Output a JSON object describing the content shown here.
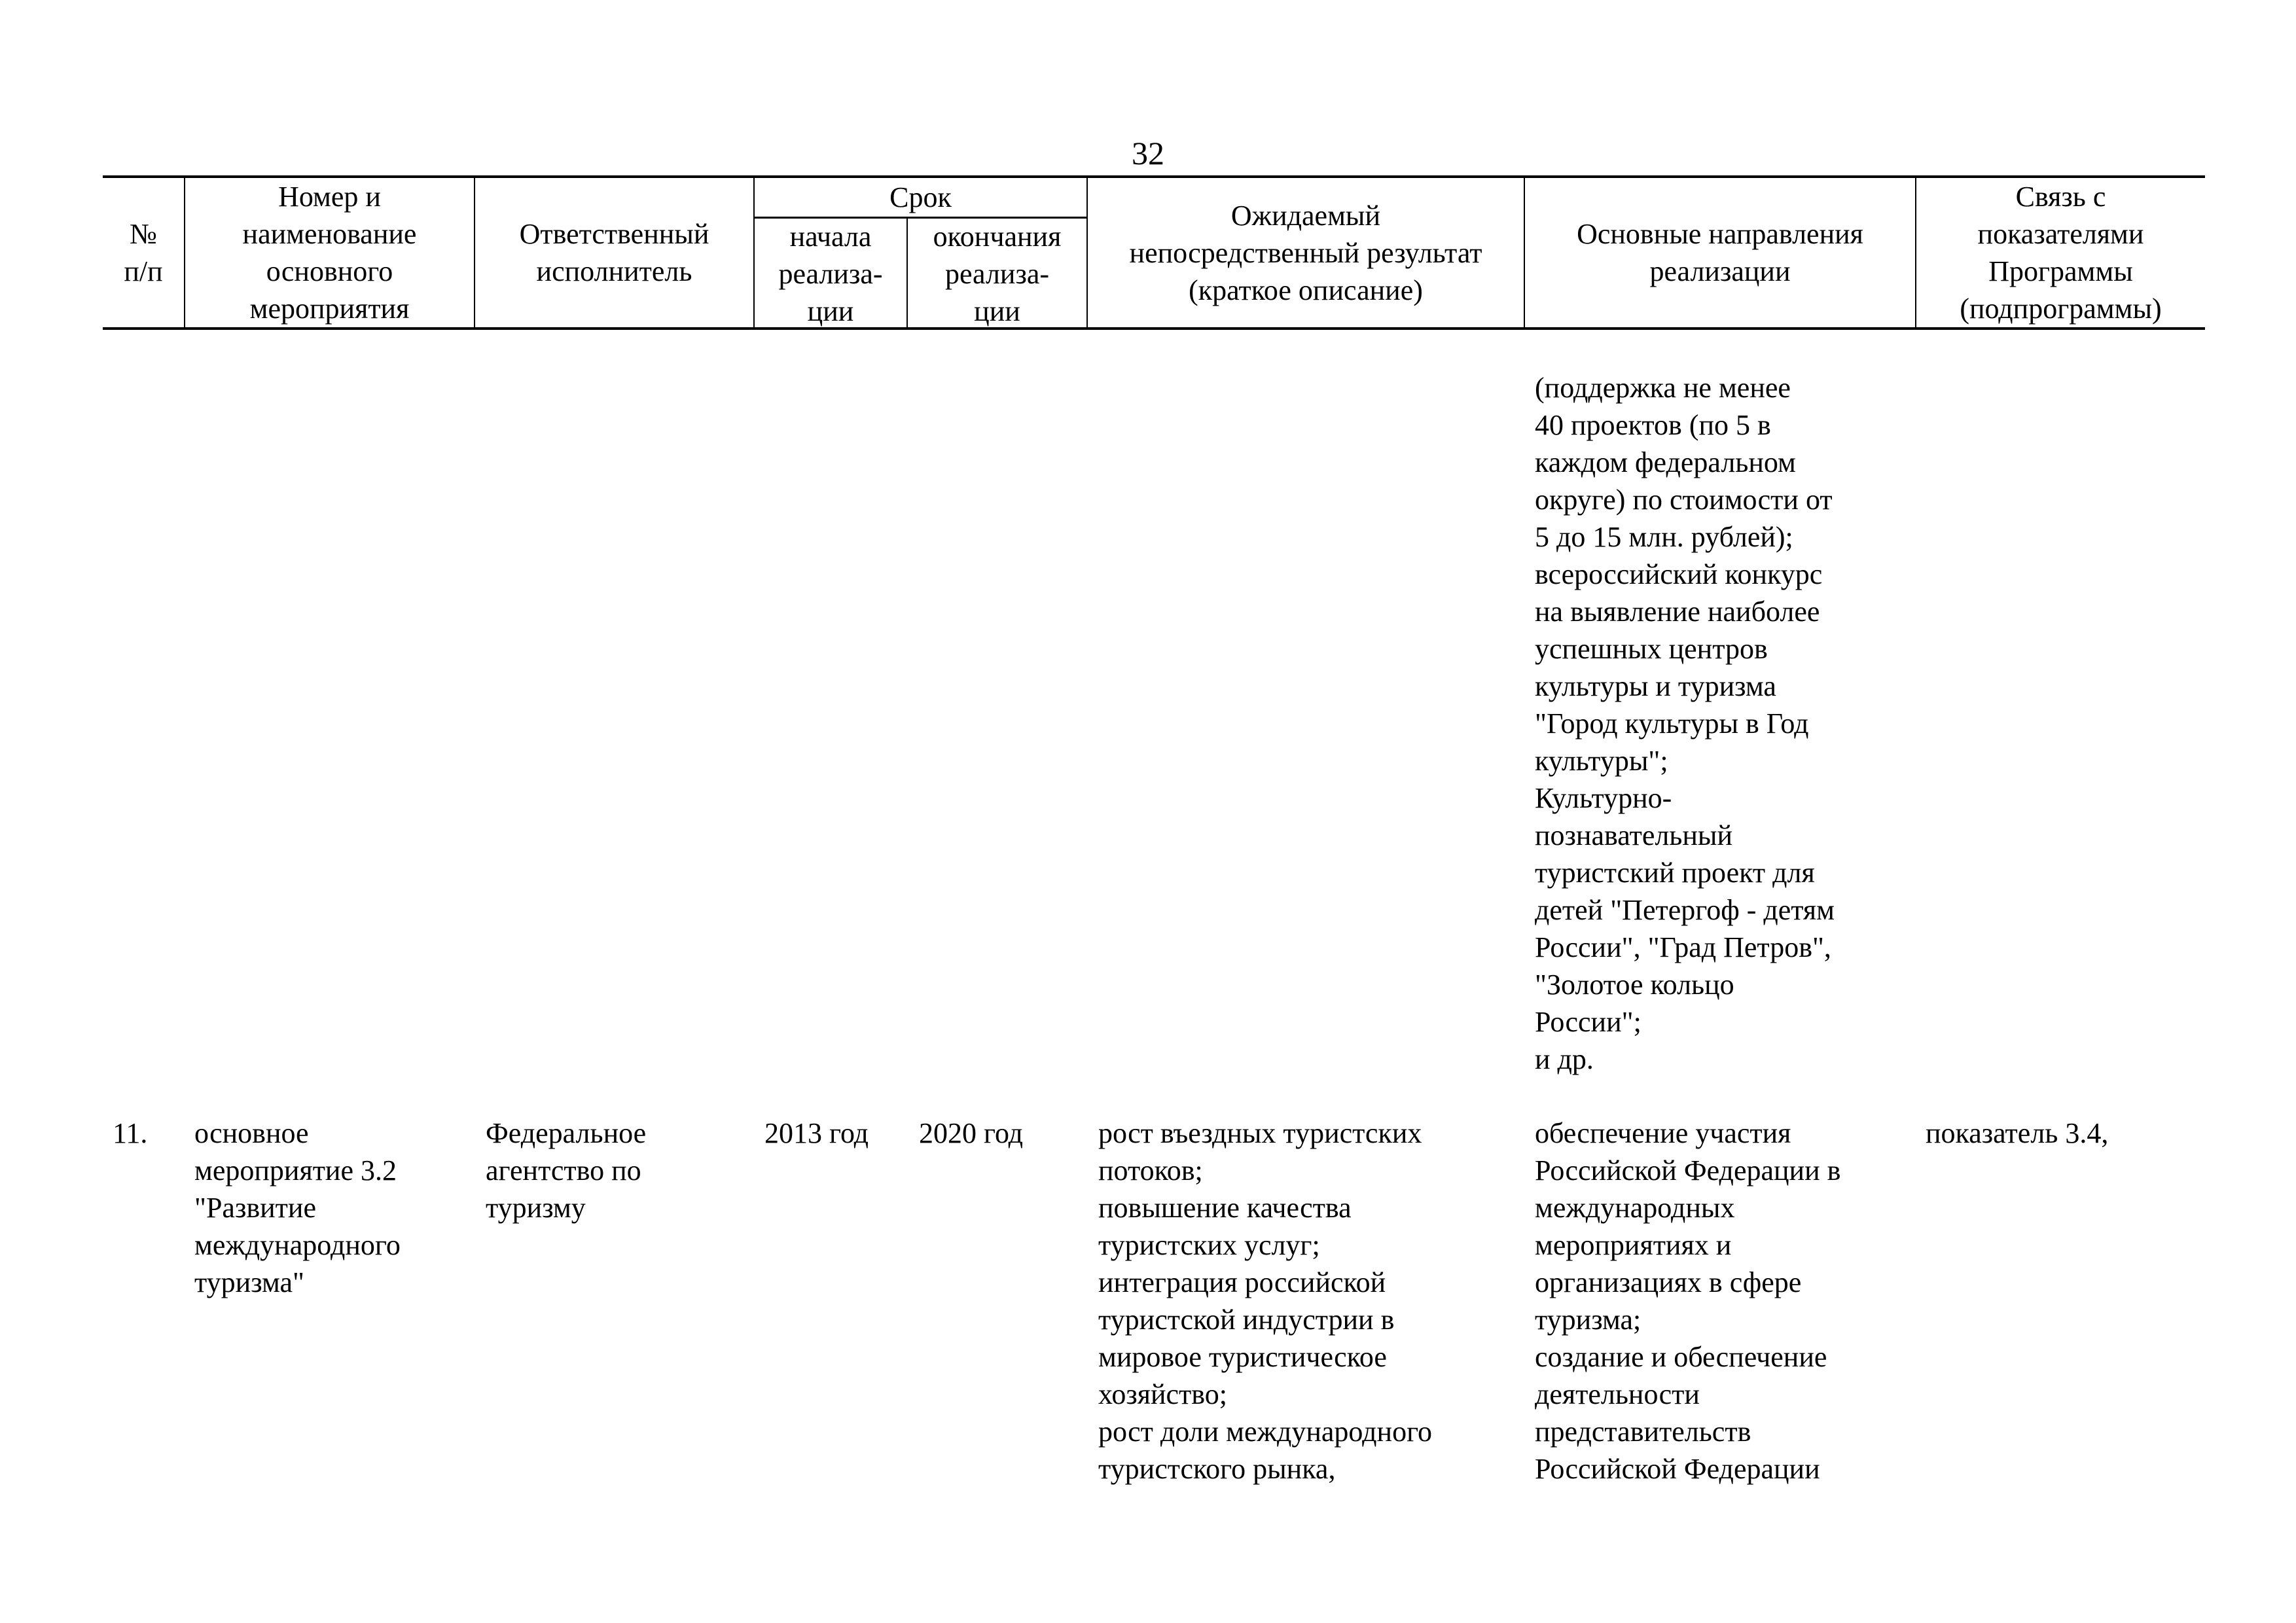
{
  "page_number": "32",
  "header": {
    "num": "№\nп/п",
    "name": "Номер и\nнаименование\nосновного\nмероприятия",
    "executor": "Ответственный\nисполнитель",
    "term": "Срок",
    "start": "начала\nреализа-\nции",
    "end": "окончания\nреализа-\nции",
    "result": "Ожидаемый\nнепосредственный результат\n(краткое описание)",
    "directions": "Основные направления\nреализации",
    "link": "Связь с\nпоказателями\nПрограммы\n(подпрограммы)"
  },
  "continuation": {
    "directions": "(поддержка не менее\n40 проектов (по 5 в\nкаждом федеральном\nокруге) по стоимости от\n5 до 15 млн. рублей);\nвсероссийский конкурс\nна выявление наиболее\nуспешных центров\nкультуры и туризма\n\"Город культуры в Год\nкультуры\";\nКультурно-\nпознавательный\nтуристский проект для\nдетей \"Петергоф - детям\nРоссии\", \"Град Петров\",\n\"Золотое кольцо\nРоссии\";\nи др."
  },
  "rows": [
    {
      "num": "11.",
      "name": "основное\nмероприятие 3.2\n\"Развитие\nмеждународного\nтуризма\"",
      "executor": "Федеральное\nагентство по\nтуризму",
      "start": "2013 год",
      "end": "2020 год",
      "result": "рост въездных туристских\nпотоков;\nповышение качества\nтуристских услуг;\nинтеграция российской\nтуристской индустрии в\nмировое туристическое\nхозяйство;\nрост доли международного\nтуристского рынка,",
      "directions": "обеспечение участия\nРоссийской Федерации в\nмеждународных\nмероприятиях и\nорганизациях в сфере\nтуризма;\nсоздание и обеспечение\nдеятельности\nпредставительств\nРоссийской Федерации",
      "link": "показатель 3.4,"
    }
  ]
}
